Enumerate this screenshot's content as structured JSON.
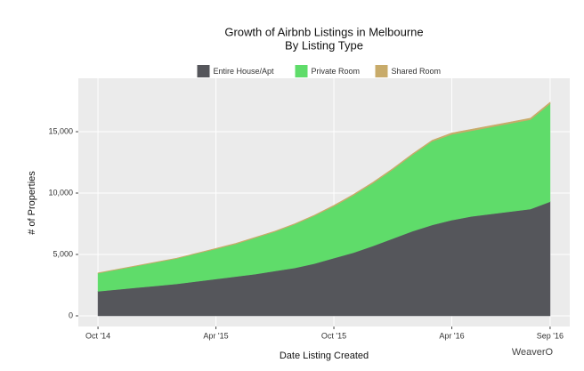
{
  "chart_data": {
    "type": "stacked_area",
    "title": "Growth of Airbnb Listings in Melbourne",
    "subtitle": "By Listing Type",
    "x_label": "Date Listing Created",
    "y_label": "# of Properties",
    "watermark": "WeaverO",
    "x": [
      "2014-10",
      "2014-11",
      "2014-12",
      "2015-01",
      "2015-02",
      "2015-03",
      "2015-04",
      "2015-05",
      "2015-06",
      "2015-07",
      "2015-08",
      "2015-09",
      "2015-10",
      "2015-11",
      "2015-12",
      "2016-01",
      "2016-02",
      "2016-03",
      "2016-04",
      "2016-05",
      "2016-06",
      "2016-07",
      "2016-08",
      "2016-09"
    ],
    "series": [
      {
        "name": "Entire House/Apt",
        "color": "#55565b",
        "values": [
          2000,
          2150,
          2300,
          2450,
          2600,
          2800,
          3000,
          3200,
          3400,
          3650,
          3900,
          4250,
          4700,
          5150,
          5700,
          6300,
          6900,
          7400,
          7800,
          8100,
          8300,
          8500,
          8700,
          9300
        ]
      },
      {
        "name": "Private Room",
        "color": "#5fdc6a",
        "values": [
          1470,
          1620,
          1770,
          1920,
          2070,
          2270,
          2450,
          2650,
          2950,
          3200,
          3550,
          3900,
          4220,
          4670,
          5120,
          5620,
          6220,
          6820,
          6980,
          6980,
          7080,
          7180,
          7280,
          7980
        ]
      },
      {
        "name": "Shared Room",
        "color": "#c8ab6a",
        "values": [
          30,
          30,
          30,
          30,
          30,
          30,
          50,
          50,
          50,
          50,
          50,
          50,
          80,
          80,
          80,
          80,
          80,
          80,
          120,
          120,
          120,
          120,
          120,
          120
        ]
      }
    ],
    "xlim": [
      "2014-09",
      "2016-10"
    ],
    "xticks": [
      {
        "value": "2014-10",
        "label": "Oct '14"
      },
      {
        "value": "2015-04",
        "label": "Apr '15"
      },
      {
        "value": "2015-10",
        "label": "Oct '15"
      },
      {
        "value": "2016-04",
        "label": "Apr '16"
      },
      {
        "value": "2016-09",
        "label": "Sep '16"
      }
    ],
    "ylim": [
      -870,
      19350
    ],
    "yticks": [
      0,
      {
        "value": 5000,
        "label": "5,000"
      },
      {
        "value": 10000,
        "label": "10,000"
      },
      {
        "value": 15000,
        "label": "15,000"
      }
    ],
    "grid": true,
    "legend": "top"
  }
}
